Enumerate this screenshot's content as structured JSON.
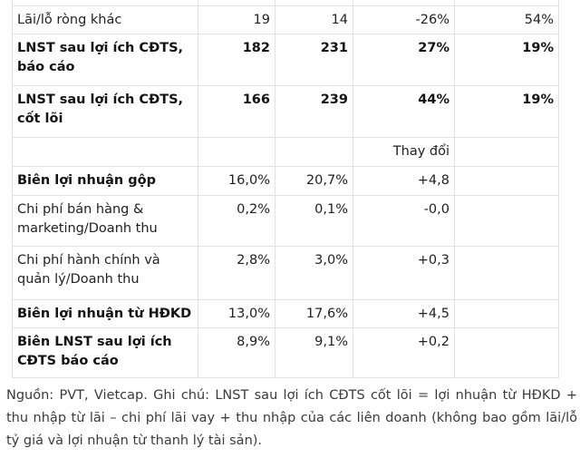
{
  "table": {
    "rows": [
      {
        "label": "Lãi/lỗ ròng khác",
        "v1": "19",
        "v2": "14",
        "v3": "-26%",
        "v4": "54%"
      },
      {
        "label": "LNST sau lợi ích CĐTS, báo cáo",
        "v1": "182",
        "v2": "231",
        "v3": "27%",
        "v4": "19%"
      },
      {
        "label": "LNST sau lợi ích CĐTS, cốt lõi",
        "v1": "166",
        "v2": "239",
        "v3": "44%",
        "v4": "19%"
      },
      {
        "label": "",
        "v1": "",
        "v2": "",
        "v3": "Thay đổi",
        "v4": ""
      },
      {
        "label": "Biên lợi nhuận gộp",
        "v1": "16,0%",
        "v2": "20,7%",
        "v3": "+4,8",
        "v4": ""
      },
      {
        "label": "Chi phí bán hàng & marketing/Doanh thu",
        "v1": "0,2%",
        "v2": "0,1%",
        "v3": "-0,0",
        "v4": ""
      },
      {
        "label": "Chi phí hành chính và quản lý/Doanh thu",
        "v1": "2,8%",
        "v2": "3,0%",
        "v3": "+0,3",
        "v4": ""
      },
      {
        "label": "Biên lợi nhuận từ HĐKD",
        "v1": "13,0%",
        "v2": "17,6%",
        "v3": "+4,5",
        "v4": ""
      },
      {
        "label": "Biên LNST sau lợi ích CĐTS báo cáo",
        "v1": "8,9%",
        "v2": "9,1%",
        "v3": "+0,2",
        "v4": ""
      }
    ]
  },
  "footnote_text": "Nguồn: PVT, Vietcap. Ghi chú: LNST sau lợi ích CĐTS cốt lõi = lợi nhuận từ HĐKD + thu nhập từ lãi – chi phí lãi vay + thu nhập của các liên doanh (không bao gồm lãi/lỗ tỷ giá và lợi nhuận từ thanh lý tài sản).",
  "colors": {
    "border": "#e2e2e2",
    "text": "#222222",
    "bold_text": "#141414",
    "footnote_text": "#3b3b3b",
    "background": "#ffffff"
  }
}
